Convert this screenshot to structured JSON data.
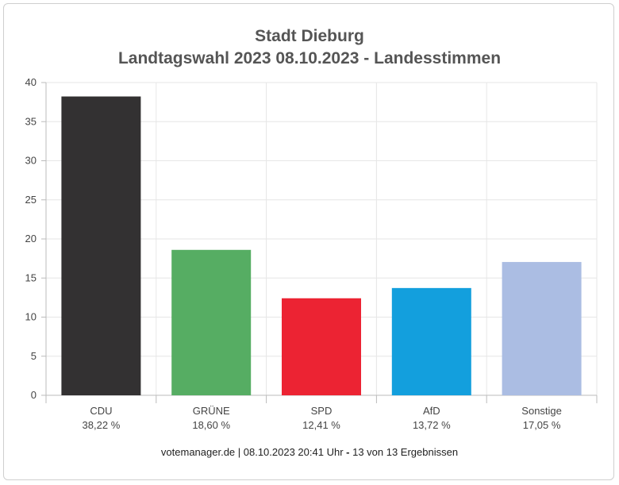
{
  "title_line1": "Stadt Dieburg",
  "title_line2": "Landtagswahl 2023 08.10.2023  - Landesstimmen",
  "footer": {
    "source": "votemanager.de | 08.10.2023 20:41 Uhr",
    "sep": " - ",
    "status": "13 von 13 Ergebnissen"
  },
  "chart_data": {
    "type": "bar",
    "categories": [
      "CDU",
      "GRÜNE",
      "SPD",
      "AfD",
      "Sonstige"
    ],
    "values": [
      38.22,
      18.6,
      12.41,
      13.72,
      17.05
    ],
    "value_labels": [
      "38,22 %",
      "18,60 %",
      "12,41 %",
      "13,72 %",
      "17,05 %"
    ],
    "colors": [
      "#333132",
      "#56ad63",
      "#ec2333",
      "#139fdd",
      "#abbde3"
    ],
    "ylim": [
      0,
      40
    ],
    "yticks": [
      0,
      5,
      10,
      15,
      20,
      25,
      30,
      35,
      40
    ],
    "grid": true
  }
}
